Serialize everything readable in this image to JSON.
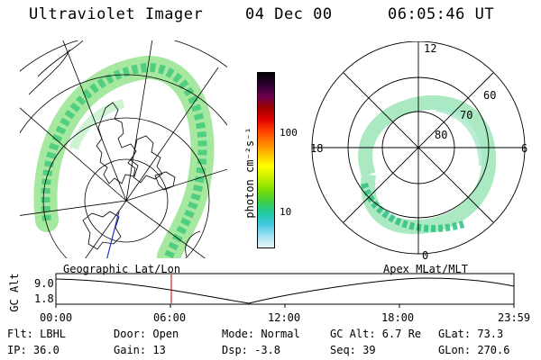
{
  "header": {
    "instrument": "Ultraviolet Imager",
    "date": "04 Dec 00",
    "time": "06:05:46 UT"
  },
  "colorbar": {
    "unit_label": "photon cm⁻²s⁻¹",
    "ticks": [
      "100",
      "10"
    ],
    "colors": [
      "#000000",
      "#2a0030",
      "#6a0050",
      "#a00000",
      "#e00000",
      "#ff4000",
      "#ff8000",
      "#ffc000",
      "#ffff00",
      "#c8f000",
      "#80e000",
      "#40d040",
      "#20c8a0",
      "#40c8e0",
      "#a0e0f0",
      "#e8f4f8"
    ]
  },
  "geo_panel": {
    "label": "Geographic Lat/Lon"
  },
  "polar_panel": {
    "label": "Apex MLat/MLT",
    "mlt_labels": {
      "top": "12",
      "left": "18",
      "right": "6",
      "bottom": "0"
    },
    "lat_labels": [
      "60",
      "70",
      "80"
    ]
  },
  "timeline": {
    "ylabel": "GC Alt",
    "yticks": [
      "9.0",
      "1.8"
    ],
    "xticks": [
      "00:00",
      "06:00",
      "12:00",
      "18:00",
      "23:59"
    ],
    "current_marker_color": "#c00000"
  },
  "status": {
    "row1": {
      "flt": "Flt: LBHL",
      "door": "Door: Open",
      "mode": "Mode: Normal",
      "gcalt": "GC Alt: 6.7 Re",
      "glat": "GLat:  73.3"
    },
    "row2": {
      "ip": "IP: 36.0",
      "gain": "Gain: 13",
      "dsp": "Dsp:   -3.8",
      "seq": "Seq: 39",
      "glon": "GLon: 270.6"
    }
  }
}
